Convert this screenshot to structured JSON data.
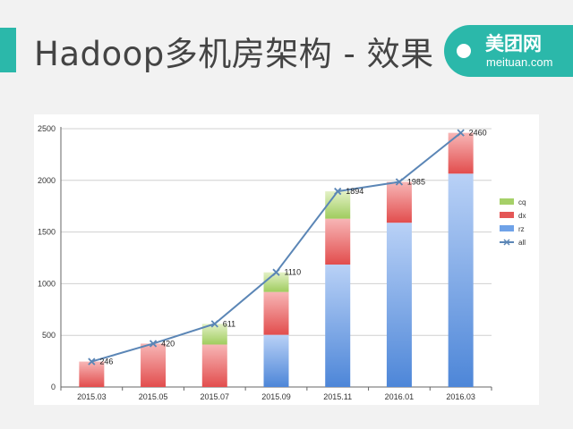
{
  "slide": {
    "title": "Hadoop多机房架构 - 效果"
  },
  "logo": {
    "name": "美团网",
    "domain": "meituan.com"
  },
  "colors": {
    "accent": "#2bb8aa",
    "rz": "#6fa2e8",
    "dx": "#e45656",
    "cq": "#a6d068",
    "all": "#5b86b6"
  },
  "chart_data": {
    "type": "bar",
    "stacked": true,
    "categories": [
      "2015.03",
      "2015.05",
      "2015.07",
      "2015.09",
      "2015.11",
      "2016.01",
      "2016.03"
    ],
    "series": [
      {
        "name": "rz",
        "kind": "bar",
        "values": [
          0,
          0,
          0,
          505,
          1185,
          1590,
          2065
        ]
      },
      {
        "name": "dx",
        "kind": "bar",
        "values": [
          246,
          420,
          411,
          415,
          444,
          395,
          395
        ]
      },
      {
        "name": "cq",
        "kind": "bar",
        "values": [
          0,
          0,
          200,
          190,
          265,
          0,
          0
        ]
      },
      {
        "name": "all",
        "kind": "line",
        "values": [
          246,
          420,
          611,
          1110,
          1894,
          1985,
          2460
        ]
      }
    ],
    "data_labels": [
      "246",
      "420",
      "611",
      "1110",
      "1894",
      "1985",
      "2460"
    ],
    "yticks": [
      "0",
      "500",
      "1000",
      "1500",
      "2000",
      "2500"
    ],
    "ylim": [
      0,
      2500
    ],
    "grid": true,
    "legend": "right",
    "legend_order": [
      "cq",
      "dx",
      "rz",
      "all"
    ]
  }
}
